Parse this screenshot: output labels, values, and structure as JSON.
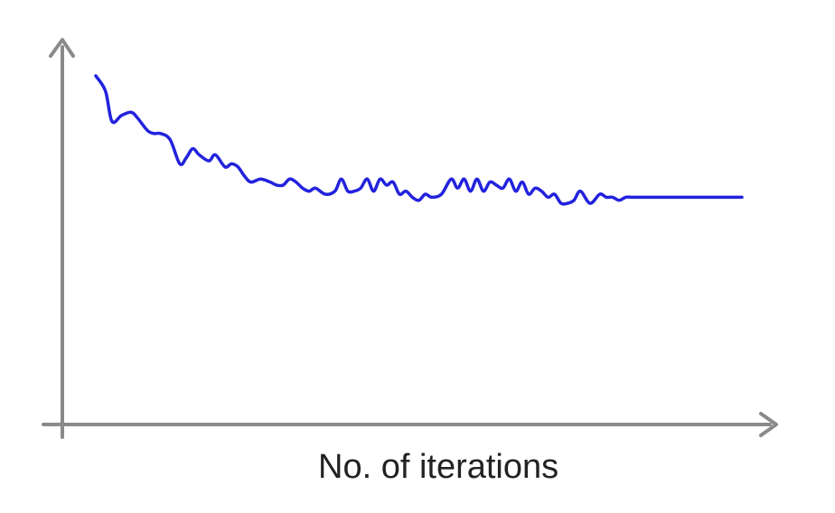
{
  "chart_data": {
    "type": "line",
    "title": "",
    "xlabel": "No. of iterations",
    "ylabel": "",
    "grid": false,
    "ticks": false,
    "xlim": [
      0,
      100
    ],
    "ylim": [
      0,
      100
    ],
    "series": [
      {
        "color": "#2222dd",
        "x": [
          0,
          1.5,
          2.5,
          4,
          5.5,
          6.5,
          8,
          9,
          10,
          11.5,
          13,
          14,
          15,
          16,
          17.5,
          18.5,
          20,
          21,
          22,
          23,
          24,
          25.5,
          27,
          28,
          29,
          30,
          31,
          32,
          33,
          34,
          35.5,
          37,
          38,
          39,
          40,
          41,
          42,
          43,
          44,
          45,
          46,
          47,
          48,
          49,
          50,
          51,
          52,
          53.5,
          55,
          56,
          57,
          58,
          59,
          60,
          61,
          62,
          63,
          64,
          65,
          66,
          67,
          68,
          69,
          70,
          71,
          72,
          73,
          74,
          75,
          76.5,
          78,
          79,
          80,
          81,
          82,
          83,
          84,
          85,
          86,
          87,
          88,
          89,
          90,
          91,
          92,
          93,
          94,
          95,
          96,
          97,
          98,
          99,
          100
        ],
        "y": [
          100,
          95,
          85,
          87,
          88,
          86,
          82,
          81,
          81,
          79,
          71,
          73,
          76,
          74,
          72,
          74,
          70,
          71,
          70,
          67,
          65,
          66,
          65,
          64,
          64,
          66,
          65,
          63,
          62,
          63,
          61,
          62,
          66,
          62,
          62,
          63,
          66,
          62,
          66,
          64,
          65,
          61,
          62,
          60,
          59,
          61,
          60,
          61,
          66,
          63,
          66,
          62,
          66,
          62,
          65,
          64,
          63,
          66,
          62,
          65,
          61,
          63,
          62,
          60,
          61,
          58,
          58,
          59,
          62,
          58,
          61,
          60,
          60,
          59,
          60,
          60,
          60,
          60,
          60,
          60,
          60,
          60,
          60,
          60,
          60,
          60,
          60,
          60,
          60,
          60,
          60,
          60,
          60
        ]
      }
    ]
  }
}
